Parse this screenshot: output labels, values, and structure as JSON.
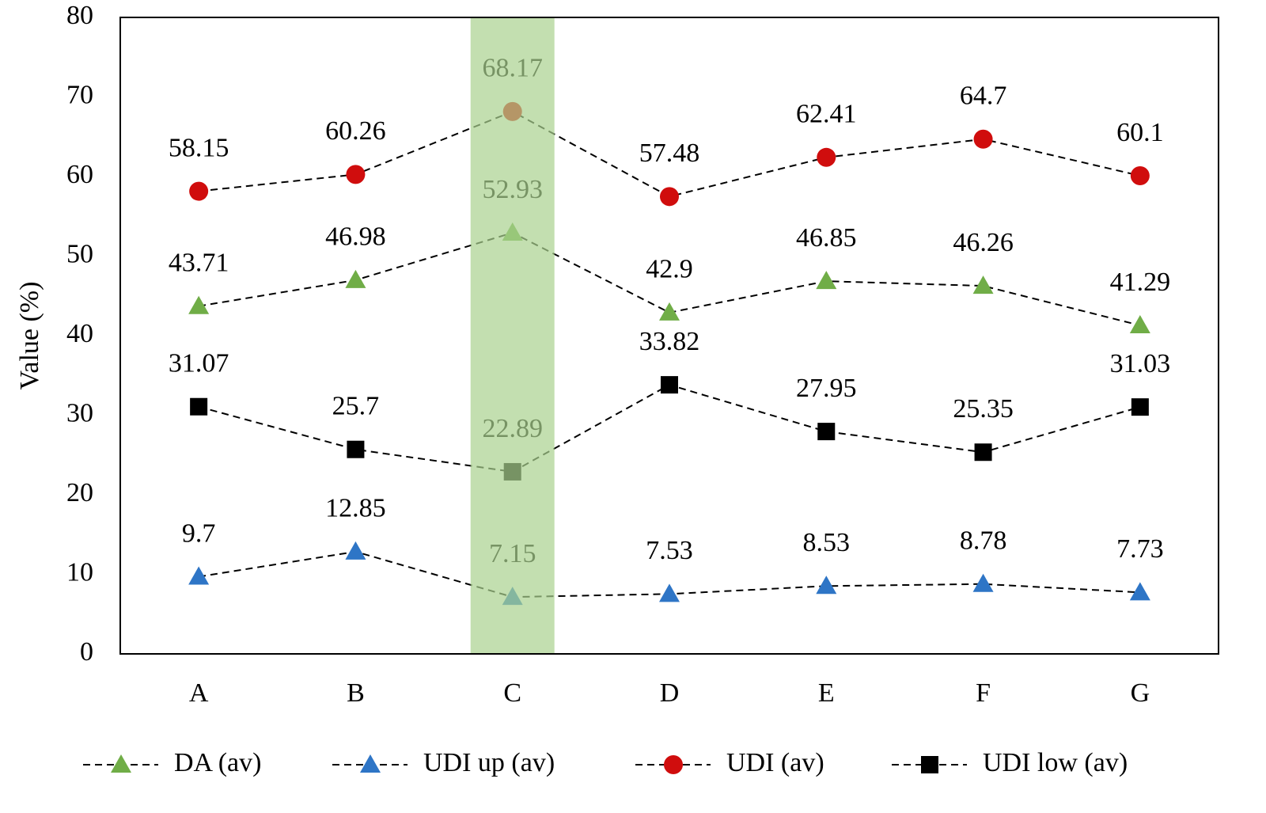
{
  "chart_data": {
    "type": "line",
    "y_label": "Value (%)",
    "categories": [
      "A",
      "B",
      "C",
      "D",
      "E",
      "F",
      "G"
    ],
    "series": [
      {
        "name": "DA (av)",
        "color": "#70ad47",
        "marker": "triangle",
        "values": [
          43.71,
          46.98,
          52.93,
          42.9,
          46.85,
          46.26,
          41.29
        ]
      },
      {
        "name": "UDI up (av)",
        "color": "#2e75c6",
        "marker": "triangle",
        "values": [
          9.7,
          12.85,
          7.15,
          7.53,
          8.53,
          8.78,
          7.73
        ]
      },
      {
        "name": "UDI (av)",
        "color": "#d00d0d",
        "marker": "circle",
        "values": [
          58.15,
          60.26,
          68.17,
          57.48,
          62.41,
          64.7,
          60.1
        ]
      },
      {
        "name": "UDI low (av)",
        "color": "#000000",
        "marker": "square",
        "values": [
          31.07,
          25.7,
          22.89,
          33.82,
          27.95,
          25.35,
          31.03
        ]
      }
    ],
    "ylim": [
      0,
      80
    ],
    "yticks": [
      0,
      10,
      20,
      30,
      40,
      50,
      60,
      70,
      80
    ],
    "grid": false,
    "legend": "bottom",
    "data_labels": true,
    "highlight_category": "C",
    "highlight_color": "#a9d18e"
  }
}
